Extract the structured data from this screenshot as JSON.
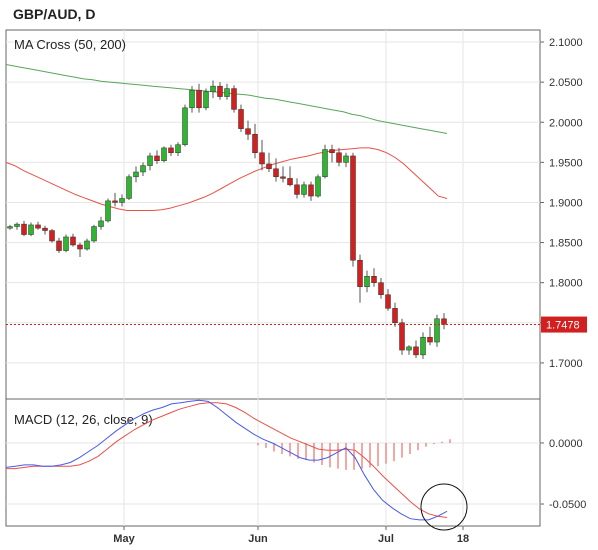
{
  "header": {
    "title": "GBP/AUD, D"
  },
  "chart_data": [
    {
      "type": "candlestick",
      "label": "MA Cross (50, 200)",
      "y_ticks": [
        "2.1000",
        "2.0500",
        "2.0000",
        "1.9500",
        "1.9000",
        "1.8500",
        "1.8000",
        "1.7500",
        "1.7000"
      ],
      "ylim": [
        1.655,
        2.115
      ],
      "x_ticks": [
        "May",
        "Jun",
        "Jul",
        "18"
      ],
      "last_price": {
        "label": "1.7478",
        "value": 1.7478
      },
      "candles": [
        [
          1.868,
          1.872,
          1.866,
          1.87
        ],
        [
          1.87,
          1.875,
          1.866,
          1.873
        ],
        [
          1.873,
          1.877,
          1.858,
          1.86
        ],
        [
          1.86,
          1.875,
          1.858,
          1.872
        ],
        [
          1.872,
          1.876,
          1.866,
          1.868
        ],
        [
          1.868,
          1.871,
          1.86,
          1.865
        ],
        [
          1.865,
          1.867,
          1.85,
          1.852
        ],
        [
          1.852,
          1.856,
          1.837,
          1.84
        ],
        [
          1.84,
          1.86,
          1.838,
          1.857
        ],
        [
          1.857,
          1.861,
          1.845,
          1.847
        ],
        [
          1.847,
          1.85,
          1.832,
          1.842
        ],
        [
          1.842,
          1.855,
          1.84,
          1.852
        ],
        [
          1.852,
          1.872,
          1.85,
          1.87
        ],
        [
          1.87,
          1.882,
          1.866,
          1.877
        ],
        [
          1.877,
          1.905,
          1.875,
          1.902
        ],
        [
          1.902,
          1.912,
          1.895,
          1.9
        ],
        [
          1.9,
          1.91,
          1.895,
          1.905
        ],
        [
          1.905,
          1.935,
          1.903,
          1.932
        ],
        [
          1.932,
          1.945,
          1.925,
          1.938
        ],
        [
          1.938,
          1.95,
          1.933,
          1.946
        ],
        [
          1.946,
          1.962,
          1.94,
          1.958
        ],
        [
          1.958,
          1.965,
          1.948,
          1.952
        ],
        [
          1.952,
          1.97,
          1.95,
          1.968
        ],
        [
          1.968,
          1.972,
          1.958,
          1.962
        ],
        [
          1.962,
          1.975,
          1.958,
          1.972
        ],
        [
          1.972,
          2.022,
          1.97,
          2.018
        ],
        [
          2.018,
          2.045,
          2.012,
          2.04
        ],
        [
          2.04,
          2.048,
          2.012,
          2.018
        ],
        [
          2.018,
          2.042,
          2.015,
          2.038
        ],
        [
          2.038,
          2.052,
          2.03,
          2.045
        ],
        [
          2.045,
          2.05,
          2.028,
          2.032
        ],
        [
          2.032,
          2.048,
          2.028,
          2.042
        ],
        [
          2.042,
          2.046,
          2.012,
          2.016
        ],
        [
          2.016,
          2.022,
          1.988,
          1.992
        ],
        [
          1.992,
          2.002,
          1.978,
          1.985
        ],
        [
          1.985,
          1.998,
          1.955,
          1.962
        ],
        [
          1.962,
          1.978,
          1.94,
          1.948
        ],
        [
          1.948,
          1.962,
          1.938,
          1.942
        ],
        [
          1.942,
          1.955,
          1.926,
          1.932
        ],
        [
          1.932,
          1.945,
          1.925,
          1.93
        ],
        [
          1.93,
          1.945,
          1.92,
          1.922
        ],
        [
          1.922,
          1.93,
          1.905,
          1.91
        ],
        [
          1.91,
          1.926,
          1.906,
          1.922
        ],
        [
          1.922,
          1.926,
          1.902,
          1.908
        ],
        [
          1.908,
          1.935,
          1.906,
          1.932
        ],
        [
          1.932,
          1.972,
          1.93,
          1.966
        ],
        [
          1.966,
          1.972,
          1.95,
          1.962
        ],
        [
          1.962,
          1.968,
          1.945,
          1.95
        ],
        [
          1.95,
          1.962,
          1.944,
          1.958
        ],
        [
          1.958,
          1.962,
          1.82,
          1.828
        ],
        [
          1.828,
          1.835,
          1.775,
          1.795
        ],
        [
          1.795,
          1.815,
          1.788,
          1.808
        ],
        [
          1.808,
          1.818,
          1.795,
          1.8
        ],
        [
          1.8,
          1.806,
          1.78,
          1.785
        ],
        [
          1.785,
          1.792,
          1.765,
          1.768
        ],
        [
          1.768,
          1.775,
          1.745,
          1.75
        ],
        [
          1.75,
          1.755,
          1.71,
          1.716
        ],
        [
          1.716,
          1.722,
          1.71,
          1.72
        ],
        [
          1.72,
          1.728,
          1.706,
          1.71
        ],
        [
          1.71,
          1.738,
          1.705,
          1.732
        ],
        [
          1.732,
          1.745,
          1.722,
          1.726
        ],
        [
          1.726,
          1.76,
          1.72,
          1.755
        ],
        [
          1.755,
          1.762,
          1.742,
          1.748
        ]
      ],
      "ma50": [
        1.95,
        1.946,
        1.94,
        1.935,
        1.93,
        1.925,
        1.92,
        1.915,
        1.91,
        1.906,
        1.902,
        1.898,
        1.895,
        1.892,
        1.89,
        1.89,
        1.89,
        1.89,
        1.891,
        1.893,
        1.896,
        1.899,
        1.903,
        1.907,
        1.912,
        1.918,
        1.924,
        1.93,
        1.935,
        1.94,
        1.944,
        1.948,
        1.951,
        1.954,
        1.956,
        1.958,
        1.961,
        1.963,
        1.965,
        1.966,
        1.967,
        1.968,
        1.968,
        1.966,
        1.962,
        1.956,
        1.948,
        1.938,
        1.928,
        1.918,
        1.908,
        1.905
      ],
      "ma200": [
        2.072,
        2.07,
        2.068,
        2.066,
        2.064,
        2.062,
        2.06,
        2.058,
        2.056,
        2.054,
        2.053,
        2.051,
        2.05,
        2.049,
        2.048,
        2.047,
        2.046,
        2.045,
        2.044,
        2.043,
        2.042,
        2.041,
        2.04,
        2.039,
        2.038,
        2.037,
        2.036,
        2.035,
        2.034,
        2.032,
        2.03,
        2.029,
        2.027,
        2.025,
        2.023,
        2.021,
        2.019,
        2.017,
        2.015,
        2.013,
        2.01,
        2.008,
        2.005,
        2.002,
        2.0,
        1.998,
        1.996,
        1.994,
        1.992,
        1.99,
        1.988,
        1.986
      ]
    },
    {
      "type": "macd",
      "label": "MACD (12, 26, close, 9)",
      "y_ticks": [
        "0.0000",
        "-0.0500"
      ],
      "ylim": [
        -0.068,
        0.036
      ],
      "macd": [
        -0.02,
        -0.019,
        -0.018,
        -0.018,
        -0.019,
        -0.019,
        -0.018,
        -0.016,
        -0.012,
        -0.007,
        -0.002,
        0.004,
        0.01,
        0.015,
        0.02,
        0.024,
        0.027,
        0.029,
        0.032,
        0.033,
        0.034,
        0.035,
        0.034,
        0.029,
        0.023,
        0.017,
        0.012,
        0.007,
        0.003,
        0.0,
        -0.004,
        -0.008,
        -0.012,
        -0.014,
        -0.014,
        -0.012,
        -0.008,
        -0.004,
        -0.012,
        -0.026,
        -0.038,
        -0.047,
        -0.053,
        -0.058,
        -0.062,
        -0.063,
        -0.063,
        -0.06,
        -0.056
      ],
      "signal": [
        -0.021,
        -0.021,
        -0.02,
        -0.019,
        -0.019,
        -0.019,
        -0.019,
        -0.019,
        -0.018,
        -0.015,
        -0.011,
        -0.005,
        0.001,
        0.006,
        0.011,
        0.015,
        0.019,
        0.022,
        0.025,
        0.028,
        0.03,
        0.032,
        0.033,
        0.033,
        0.032,
        0.029,
        0.025,
        0.02,
        0.016,
        0.012,
        0.008,
        0.004,
        0.001,
        -0.002,
        -0.005,
        -0.006,
        -0.006,
        -0.005,
        -0.006,
        -0.012,
        -0.019,
        -0.027,
        -0.034,
        -0.041,
        -0.048,
        -0.054,
        -0.058,
        -0.06,
        -0.061
      ],
      "histogram": [
        -0.002,
        -0.004,
        -0.007,
        -0.009,
        -0.011,
        -0.013,
        -0.014,
        -0.016,
        -0.018,
        -0.02,
        -0.021,
        -0.022,
        -0.022,
        -0.021,
        -0.02,
        -0.019,
        -0.017,
        -0.015,
        -0.012,
        -0.009,
        -0.006,
        -0.003,
        -0.001,
        0.001,
        0.003
      ]
    }
  ]
}
